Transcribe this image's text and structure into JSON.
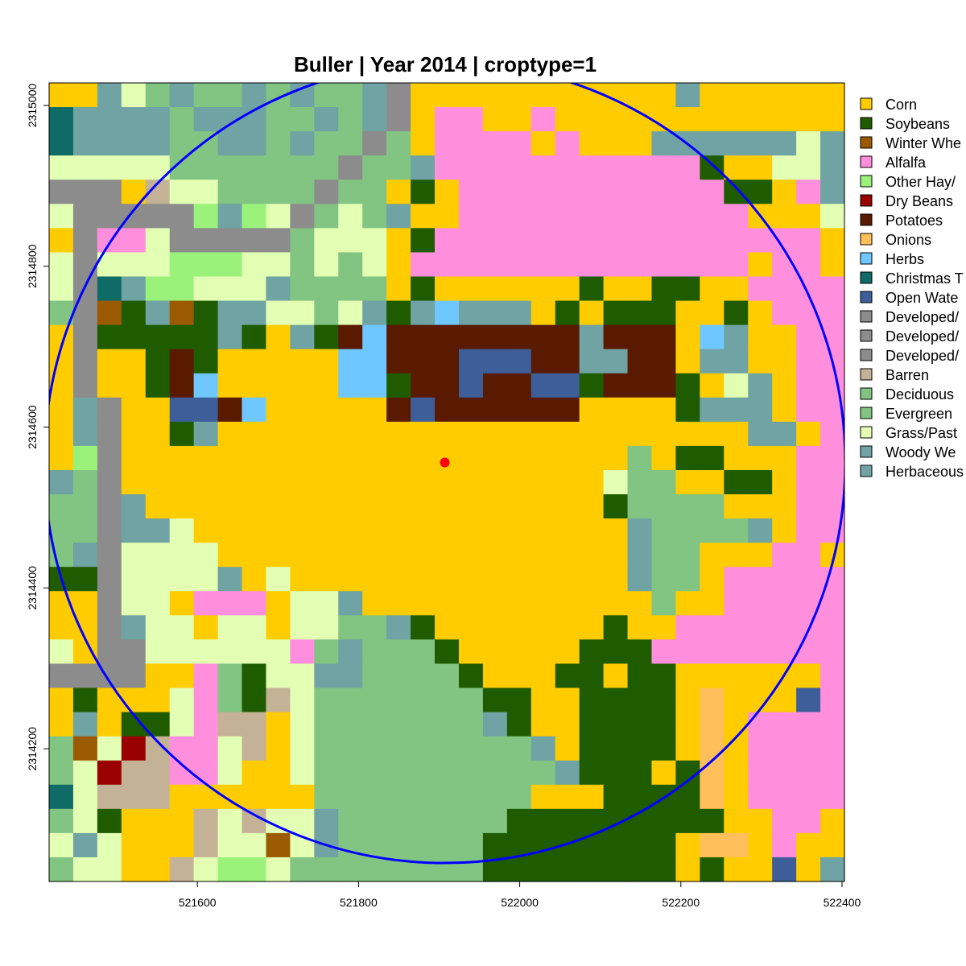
{
  "map": {
    "title": "Buller | Year 2014 | croptype=1",
    "x_ticks": [
      "521600",
      "521800",
      "522000",
      "522200",
      "522400"
    ],
    "y_ticks": [
      "2314200",
      "2314400",
      "2314600",
      "2314800",
      "2315000"
    ],
    "x_tick_values": [
      521600,
      521800,
      522000,
      522200,
      522400
    ],
    "y_tick_values": [
      2314200,
      2314400,
      2314600,
      2314800,
      2315000
    ],
    "extent": {
      "xmin": 521416,
      "xmax": 522403,
      "ymin": 2314035,
      "ymax": 2315028
    },
    "center": {
      "x": 521907,
      "y": 2314556
    },
    "buffer_radius": 497,
    "cell_columns": 33,
    "cell_rows": 33,
    "point_color": "#ff0000",
    "circle_color": "#0000ff",
    "legend": [
      {
        "label": "Corn",
        "code": "C",
        "color": "#ffcc00"
      },
      {
        "label": "Soybeans",
        "code": "S",
        "color": "#1f5c00"
      },
      {
        "label": "Winter Whe",
        "code": "W",
        "color": "#9c5a00"
      },
      {
        "label": "Alfalfa",
        "code": "A",
        "color": "#ff8fdc"
      },
      {
        "label": "Other Hay/",
        "code": "O",
        "color": "#9bf27a"
      },
      {
        "label": "Dry Beans",
        "code": "D",
        "color": "#990000"
      },
      {
        "label": "Potatoes",
        "code": "P",
        "color": "#5a1a00"
      },
      {
        "label": "Onions",
        "code": "N",
        "color": "#ffbf5a"
      },
      {
        "label": "Herbs",
        "code": "H",
        "color": "#6ec7ff"
      },
      {
        "label": "Christmas T",
        "code": "T",
        "color": "#0f6b66"
      },
      {
        "label": "Open Wate",
        "code": "B",
        "color": "#3d5e99"
      },
      {
        "label": "Developed/",
        "code": "G",
        "color": "#8c8c8c"
      },
      {
        "label": "Developed/",
        "code": "G2",
        "color": "#8c8c8c"
      },
      {
        "label": "Developed/",
        "code": "G3",
        "color": "#8c8c8c"
      },
      {
        "label": "Barren",
        "code": "R",
        "color": "#c4b296"
      },
      {
        "label": "Deciduous",
        "code": "F",
        "color": "#82c482"
      },
      {
        "label": "Evergreen",
        "code": "E",
        "color": "#82c482"
      },
      {
        "label": "Grass/Past",
        "code": "Y",
        "color": "#e3ffb3"
      },
      {
        "label": "Woody We",
        "code": "V",
        "color": "#70a3a3"
      },
      {
        "label": "Herbaceous",
        "code": "V2",
        "color": "#70a3a3"
      }
    ],
    "grid": [
      "CCVYFVFFVFVFFVGCCCCCCCCCCCVCCCCCC",
      "TVVVVFVVVFFVFVGCAACCACCCCCCCCCCCC",
      "TVVVVFFVVFVFFGFCAAAACACCCVVVVVVYV",
      "YYYYYFFFFFFFGFFVAAAAAAAAAAASCCYYV",
      "GGGCRYYFFFFGFFCSCAAAAAAAAAAASSCAV",
      "YGGGGGOVOYGFYFVCCAAAAAAAAAAAACCCY",
      "CGAAYGGGGGFYYYCSAAAAAAAAAAAAAAAAC",
      "YGYYYOOOYYFYFYCAAAAAAAAAAAAAACAAC",
      "YGTVOOYYYVFFFFCSCCCCCCSCCSSCCAAAA",
      "FGWSVWSVVYYFYVSVHVVVCSCSSSCCSCAAA",
      "CGSSSSSVSCVSPHPPPPPPPPVPPPCHVCCAA",
      "CGCCSPSCCCCCHHPPPBBBPPVVPPCVVCCAA",
      "CGCCSPHCCCCCHHSPPBPPBBSPPPSCYVCAA",
      "CVGCCBBPHCCCCCPBPPPPPPCCCCSVVVCAA",
      "CVGCCSVCCCCCCCCCCCCCCCCCCCCCCVVCA",
      "COGCCCCCCCCCCCCCCCCCCCCCFCSSCCCAA",
      "VFGCCCCCCCCCCCCCCCCCCCCYFFCCSSCAA",
      "FFGVCCCCCCCCCCCCCCCCCCCSFFFFCCCAA",
      "FFGVVYCCCCCCCCCCCCCCCCCCVFFFFVCAA",
      "FVGYYYYCCCCCCCCCCCCCCCCCVFFCCCAAC",
      "SSGYYYYVCYCCCCCCCCCCCCCCVFFCAAAAA",
      "CCGYYCAAACYYVCCCCCCCCCCCCFCCAAAAA",
      "CCGVYYCYYCYYFFVSCCCCCCCSCCAAAAAAA",
      "YCGGYYYYYYAFVFFFSCCCCCSSSAAAAAAAA",
      "GGGGCCAFSYYVVFFFFSCCCSSCSSCCCCCCA",
      "CSCCCYAFSRYFFFFFFFSSCCSSSSCNCCCBA",
      "CVCSSYARRCYFFFFFFFVSCCSSSSCNCAAAA",
      "FWYDRAAYRCYFFFFFFFFFVCSSSSCNCAAAA",
      "FYDRRAAYCCYFFFFFFFFFFVSSSCSNCAAAA",
      "TYRRRCCCCCCFFFFFFFFFCCCSSSSNCAAAA",
      "FYSCCCRYRYYVFFFFFFFSSSSSSSSSCCAAC",
      "YVYCCCRYYWYVFFFFFFSSSSSSSSCNNCACC",
      "FYYCCRYOOYFFFFFFFFSSSSSSSSCSCCBCV"
    ]
  }
}
